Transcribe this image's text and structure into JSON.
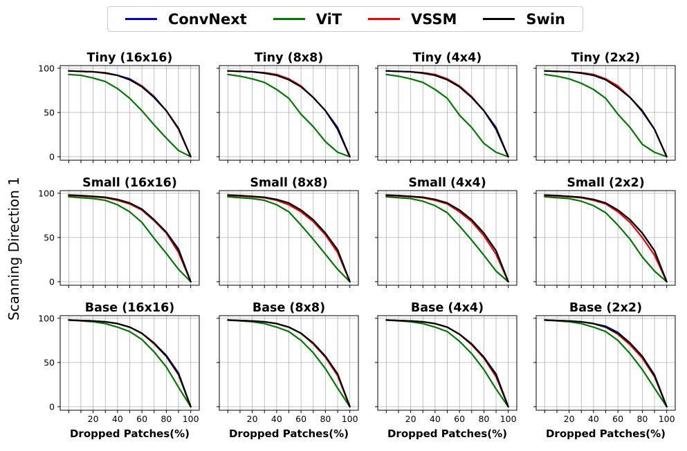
{
  "legend": [
    {
      "label": "ConvNext",
      "color": "#0000cc"
    },
    {
      "label": "ViT",
      "color": "#007700"
    },
    {
      "label": "VSSM",
      "color": "#ee0000"
    },
    {
      "label": "Swin",
      "color": "#000000"
    }
  ],
  "ylabel_shared": "Scanning Direction 1",
  "chart_data": [
    {
      "type": "line",
      "title": "Tiny (16x16)",
      "xlabel": "",
      "ylabel": "",
      "x": [
        0,
        10,
        20,
        30,
        40,
        50,
        60,
        70,
        80,
        90,
        100
      ],
      "xticks": [
        20,
        40,
        60,
        80,
        100
      ],
      "yticks": [
        0,
        50,
        100
      ],
      "xlim": [
        -7,
        107
      ],
      "ylim": [
        -4,
        103
      ],
      "grid": true,
      "series": [
        {
          "name": "ConvNext",
          "values": [
            97,
            96.5,
            96,
            94.5,
            92,
            88,
            80,
            68,
            52,
            32,
            0
          ]
        },
        {
          "name": "ViT",
          "values": [
            93,
            92,
            89,
            85,
            77,
            66,
            52,
            36,
            21,
            7,
            0
          ]
        },
        {
          "name": "VSSM",
          "values": [
            97,
            96.5,
            96,
            95,
            92,
            87,
            80,
            67,
            52,
            31,
            0
          ]
        },
        {
          "name": "Swin",
          "values": [
            97,
            96.5,
            96,
            94.5,
            92,
            87,
            79,
            67,
            52,
            32,
            0
          ]
        }
      ]
    },
    {
      "type": "line",
      "title": "Tiny (8x8)",
      "xlabel": "",
      "ylabel": "",
      "x": [
        0,
        10,
        20,
        30,
        40,
        50,
        60,
        70,
        80,
        90,
        100
      ],
      "xticks": [
        20,
        40,
        60,
        80,
        100
      ],
      "yticks": [
        0,
        50,
        100
      ],
      "xlim": [
        -7,
        107
      ],
      "ylim": [
        -4,
        103
      ],
      "grid": true,
      "series": [
        {
          "name": "ConvNext",
          "values": [
            97,
            96.5,
            96,
            94.5,
            92,
            87,
            79,
            67,
            52,
            33,
            0
          ]
        },
        {
          "name": "ViT",
          "values": [
            93,
            91,
            88,
            84,
            76,
            66,
            48,
            34,
            17,
            5,
            0
          ]
        },
        {
          "name": "VSSM",
          "values": [
            97,
            96.5,
            96,
            95,
            93,
            88,
            80,
            67,
            52,
            31,
            0
          ]
        },
        {
          "name": "Swin",
          "values": [
            97,
            96.5,
            96,
            94.5,
            92,
            87,
            79,
            67,
            52,
            31,
            0
          ]
        }
      ]
    },
    {
      "type": "line",
      "title": "Tiny (4x4)",
      "xlabel": "",
      "ylabel": "",
      "x": [
        0,
        10,
        20,
        30,
        40,
        50,
        60,
        70,
        80,
        90,
        100
      ],
      "xticks": [
        20,
        40,
        60,
        80,
        100
      ],
      "yticks": [
        0,
        50,
        100
      ],
      "xlim": [
        -7,
        107
      ],
      "ylim": [
        -4,
        103
      ],
      "grid": true,
      "series": [
        {
          "name": "ConvNext",
          "values": [
            97,
            96.5,
            96,
            94.5,
            92,
            87,
            79,
            67,
            52,
            33,
            0
          ]
        },
        {
          "name": "ViT",
          "values": [
            93,
            91,
            88,
            84,
            76,
            66,
            47,
            33,
            15,
            5,
            0
          ]
        },
        {
          "name": "VSSM",
          "values": [
            97,
            96.5,
            96,
            95,
            93,
            88,
            80,
            68,
            52,
            31,
            0
          ]
        },
        {
          "name": "Swin",
          "values": [
            97,
            96.5,
            96,
            94.5,
            92,
            87,
            79,
            67,
            52,
            31,
            0
          ]
        }
      ]
    },
    {
      "type": "line",
      "title": "Tiny (2x2)",
      "xlabel": "",
      "ylabel": "",
      "x": [
        0,
        10,
        20,
        30,
        40,
        50,
        60,
        70,
        80,
        90,
        100
      ],
      "xticks": [
        20,
        40,
        60,
        80,
        100
      ],
      "yticks": [
        0,
        50,
        100
      ],
      "xlim": [
        -7,
        107
      ],
      "ylim": [
        -4,
        103
      ],
      "grid": true,
      "series": [
        {
          "name": "ConvNext",
          "values": [
            97,
            96.5,
            96,
            94.5,
            92,
            87,
            78,
            67,
            51,
            31,
            0
          ]
        },
        {
          "name": "ViT",
          "values": [
            93,
            91,
            88,
            83,
            76,
            66,
            48,
            33,
            14,
            5,
            0
          ]
        },
        {
          "name": "VSSM",
          "values": [
            97,
            96.5,
            96,
            95,
            93,
            88,
            80,
            67,
            52,
            31,
            0
          ]
        },
        {
          "name": "Swin",
          "values": [
            97,
            96.5,
            96,
            94.5,
            92,
            87,
            78,
            67,
            52,
            31,
            0
          ]
        }
      ]
    },
    {
      "type": "line",
      "title": "Small (16x16)",
      "xlabel": "",
      "ylabel": "",
      "x": [
        0,
        10,
        20,
        30,
        40,
        50,
        60,
        70,
        80,
        90,
        100
      ],
      "xticks": [
        20,
        40,
        60,
        80,
        100
      ],
      "yticks": [
        0,
        50,
        100
      ],
      "xlim": [
        -7,
        107
      ],
      "ylim": [
        -4,
        103
      ],
      "grid": true,
      "series": [
        {
          "name": "ConvNext",
          "values": [
            97.5,
            97,
            96.5,
            95,
            93,
            89,
            82,
            70,
            56,
            37,
            0
          ]
        },
        {
          "name": "ViT",
          "values": [
            96,
            95,
            94,
            92,
            87,
            79,
            67,
            49,
            32,
            14,
            0
          ]
        },
        {
          "name": "VSSM",
          "values": [
            97.5,
            97,
            96,
            95,
            92,
            88,
            81,
            69,
            55,
            33,
            0
          ]
        },
        {
          "name": "Swin",
          "values": [
            98,
            97.5,
            96.5,
            95.5,
            93,
            89,
            82,
            70,
            56,
            36,
            0
          ]
        }
      ]
    },
    {
      "type": "line",
      "title": "Small (8x8)",
      "xlabel": "",
      "ylabel": "",
      "x": [
        0,
        10,
        20,
        30,
        40,
        50,
        60,
        70,
        80,
        90,
        100
      ],
      "xticks": [
        20,
        40,
        60,
        80,
        100
      ],
      "yticks": [
        0,
        50,
        100
      ],
      "xlim": [
        -7,
        107
      ],
      "ylim": [
        -4,
        103
      ],
      "grid": true,
      "series": [
        {
          "name": "ConvNext",
          "values": [
            97.5,
            97,
            96.5,
            95,
            93,
            89,
            81,
            70,
            55,
            36,
            0
          ]
        },
        {
          "name": "ViT",
          "values": [
            96,
            95,
            94,
            92,
            87,
            79,
            64,
            48,
            31,
            14,
            0
          ]
        },
        {
          "name": "VSSM",
          "values": [
            97.5,
            97,
            96,
            95,
            92,
            87,
            79,
            68,
            53,
            33,
            0
          ]
        },
        {
          "name": "Swin",
          "values": [
            98,
            97.5,
            96.5,
            95.5,
            93,
            89,
            81,
            70,
            55,
            36,
            0
          ]
        }
      ]
    },
    {
      "type": "line",
      "title": "Small (4x4)",
      "xlabel": "",
      "ylabel": "",
      "x": [
        0,
        10,
        20,
        30,
        40,
        50,
        60,
        70,
        80,
        90,
        100
      ],
      "xticks": [
        20,
        40,
        60,
        80,
        100
      ],
      "yticks": [
        0,
        50,
        100
      ],
      "xlim": [
        -7,
        107
      ],
      "ylim": [
        -4,
        103
      ],
      "grid": true,
      "series": [
        {
          "name": "ConvNext",
          "values": [
            97.5,
            97,
            96.5,
            95,
            93,
            89,
            81,
            70,
            55,
            35,
            0
          ]
        },
        {
          "name": "ViT",
          "values": [
            96,
            95,
            94,
            91,
            86,
            78,
            63,
            47,
            30,
            12,
            0
          ]
        },
        {
          "name": "VSSM",
          "values": [
            97.5,
            97,
            96,
            95,
            92,
            88,
            79,
            68,
            52,
            31,
            0
          ]
        },
        {
          "name": "Swin",
          "values": [
            98,
            97.5,
            96.5,
            95.5,
            93,
            89,
            81,
            70,
            55,
            35,
            0
          ]
        }
      ]
    },
    {
      "type": "line",
      "title": "Small (2x2)",
      "xlabel": "",
      "ylabel": "",
      "x": [
        0,
        10,
        20,
        30,
        40,
        50,
        60,
        70,
        80,
        90,
        100
      ],
      "xticks": [
        20,
        40,
        60,
        80,
        100
      ],
      "yticks": [
        0,
        50,
        100
      ],
      "xlim": [
        -7,
        107
      ],
      "ylim": [
        -4,
        103
      ],
      "grid": true,
      "series": [
        {
          "name": "ConvNext",
          "values": [
            97.5,
            97,
            96.5,
            95,
            93,
            89,
            81,
            70,
            55,
            35,
            0
          ]
        },
        {
          "name": "ViT",
          "values": [
            96,
            95,
            94,
            91,
            86,
            78,
            64,
            48,
            28,
            12,
            0
          ]
        },
        {
          "name": "VSSM",
          "values": [
            97.5,
            97,
            96,
            95,
            92,
            88,
            79,
            67,
            50,
            30,
            0
          ]
        },
        {
          "name": "Swin",
          "values": [
            98,
            97.5,
            96.5,
            95.5,
            93,
            89,
            81,
            70,
            55,
            35,
            0
          ]
        }
      ]
    },
    {
      "type": "line",
      "title": "Base (16x16)",
      "xlabel": "Dropped Patches(%)",
      "ylabel": "",
      "x": [
        0,
        10,
        20,
        30,
        40,
        50,
        60,
        70,
        80,
        90,
        100
      ],
      "xticks": [
        20,
        40,
        60,
        80,
        100
      ],
      "yticks": [
        0,
        50,
        100
      ],
      "xlim": [
        -7,
        107
      ],
      "ylim": [
        -4,
        103
      ],
      "grid": true,
      "series": [
        {
          "name": "ConvNext",
          "values": [
            98,
            97.5,
            97,
            96,
            94,
            90,
            83,
            72,
            58,
            38,
            0
          ]
        },
        {
          "name": "ViT",
          "values": [
            98,
            97,
            96,
            94,
            90,
            85,
            76,
            62,
            45,
            22,
            0
          ]
        },
        {
          "name": "VSSM",
          "values": [
            98,
            97.5,
            97,
            96,
            94,
            90,
            83,
            71,
            57,
            36,
            0
          ]
        },
        {
          "name": "Swin",
          "values": [
            98,
            97.5,
            97,
            96,
            94,
            90,
            83,
            72,
            57,
            37,
            0
          ]
        }
      ]
    },
    {
      "type": "line",
      "title": "Base (8x8)",
      "xlabel": "Dropped Patches(%)",
      "ylabel": "",
      "x": [
        0,
        10,
        20,
        30,
        40,
        50,
        60,
        70,
        80,
        90,
        100
      ],
      "xticks": [
        20,
        40,
        60,
        80,
        100
      ],
      "yticks": [
        0,
        50,
        100
      ],
      "xlim": [
        -7,
        107
      ],
      "ylim": [
        -4,
        103
      ],
      "grid": true,
      "series": [
        {
          "name": "ConvNext",
          "values": [
            98,
            97.5,
            97,
            96,
            94,
            90,
            83,
            72,
            57,
            37,
            0
          ]
        },
        {
          "name": "ViT",
          "values": [
            98,
            97,
            96,
            94,
            90,
            85,
            75,
            61,
            43,
            21,
            0
          ]
        },
        {
          "name": "VSSM",
          "values": [
            98,
            97.5,
            97,
            96,
            94,
            90,
            83,
            71,
            56,
            35,
            0
          ]
        },
        {
          "name": "Swin",
          "values": [
            98,
            97.5,
            97,
            96,
            94,
            90,
            83,
            72,
            57,
            37,
            0
          ]
        }
      ]
    },
    {
      "type": "line",
      "title": "Base (4x4)",
      "xlabel": "Dropped Patches(%)",
      "ylabel": "",
      "x": [
        0,
        10,
        20,
        30,
        40,
        50,
        60,
        70,
        80,
        90,
        100
      ],
      "xticks": [
        20,
        40,
        60,
        80,
        100
      ],
      "yticks": [
        0,
        50,
        100
      ],
      "xlim": [
        -7,
        107
      ],
      "ylim": [
        -4,
        103
      ],
      "grid": true,
      "series": [
        {
          "name": "ConvNext",
          "values": [
            98,
            97.5,
            97,
            96,
            94,
            90,
            82,
            71,
            56,
            37,
            0
          ]
        },
        {
          "name": "ViT",
          "values": [
            98,
            97,
            96,
            94,
            90,
            85,
            74,
            60,
            42,
            20,
            0
          ]
        },
        {
          "name": "VSSM",
          "values": [
            98,
            97.5,
            97,
            96,
            94,
            90,
            82,
            70,
            55,
            34,
            0
          ]
        },
        {
          "name": "Swin",
          "values": [
            98,
            97.5,
            97,
            96,
            94,
            90,
            82,
            71,
            56,
            36,
            0
          ]
        }
      ]
    },
    {
      "type": "line",
      "title": "Base (2x2)",
      "xlabel": "Dropped Patches(%)",
      "ylabel": "",
      "x": [
        0,
        10,
        20,
        30,
        40,
        50,
        60,
        70,
        80,
        90,
        100
      ],
      "xticks": [
        20,
        40,
        60,
        80,
        100
      ],
      "yticks": [
        0,
        50,
        100
      ],
      "xlim": [
        -7,
        107
      ],
      "ylim": [
        -4,
        103
      ],
      "grid": true,
      "series": [
        {
          "name": "ConvNext",
          "values": [
            98,
            97.5,
            97,
            96,
            94,
            91,
            84,
            72,
            57,
            36,
            0
          ]
        },
        {
          "name": "ViT",
          "values": [
            98,
            97,
            96,
            94,
            90,
            85,
            75,
            60,
            42,
            21,
            0
          ]
        },
        {
          "name": "VSSM",
          "values": [
            98,
            97.5,
            97,
            96,
            94,
            90,
            82,
            70,
            55,
            34,
            0
          ]
        },
        {
          "name": "Swin",
          "values": [
            98,
            97.5,
            97,
            96,
            94,
            90,
            83,
            72,
            57,
            35,
            0
          ]
        }
      ]
    }
  ]
}
